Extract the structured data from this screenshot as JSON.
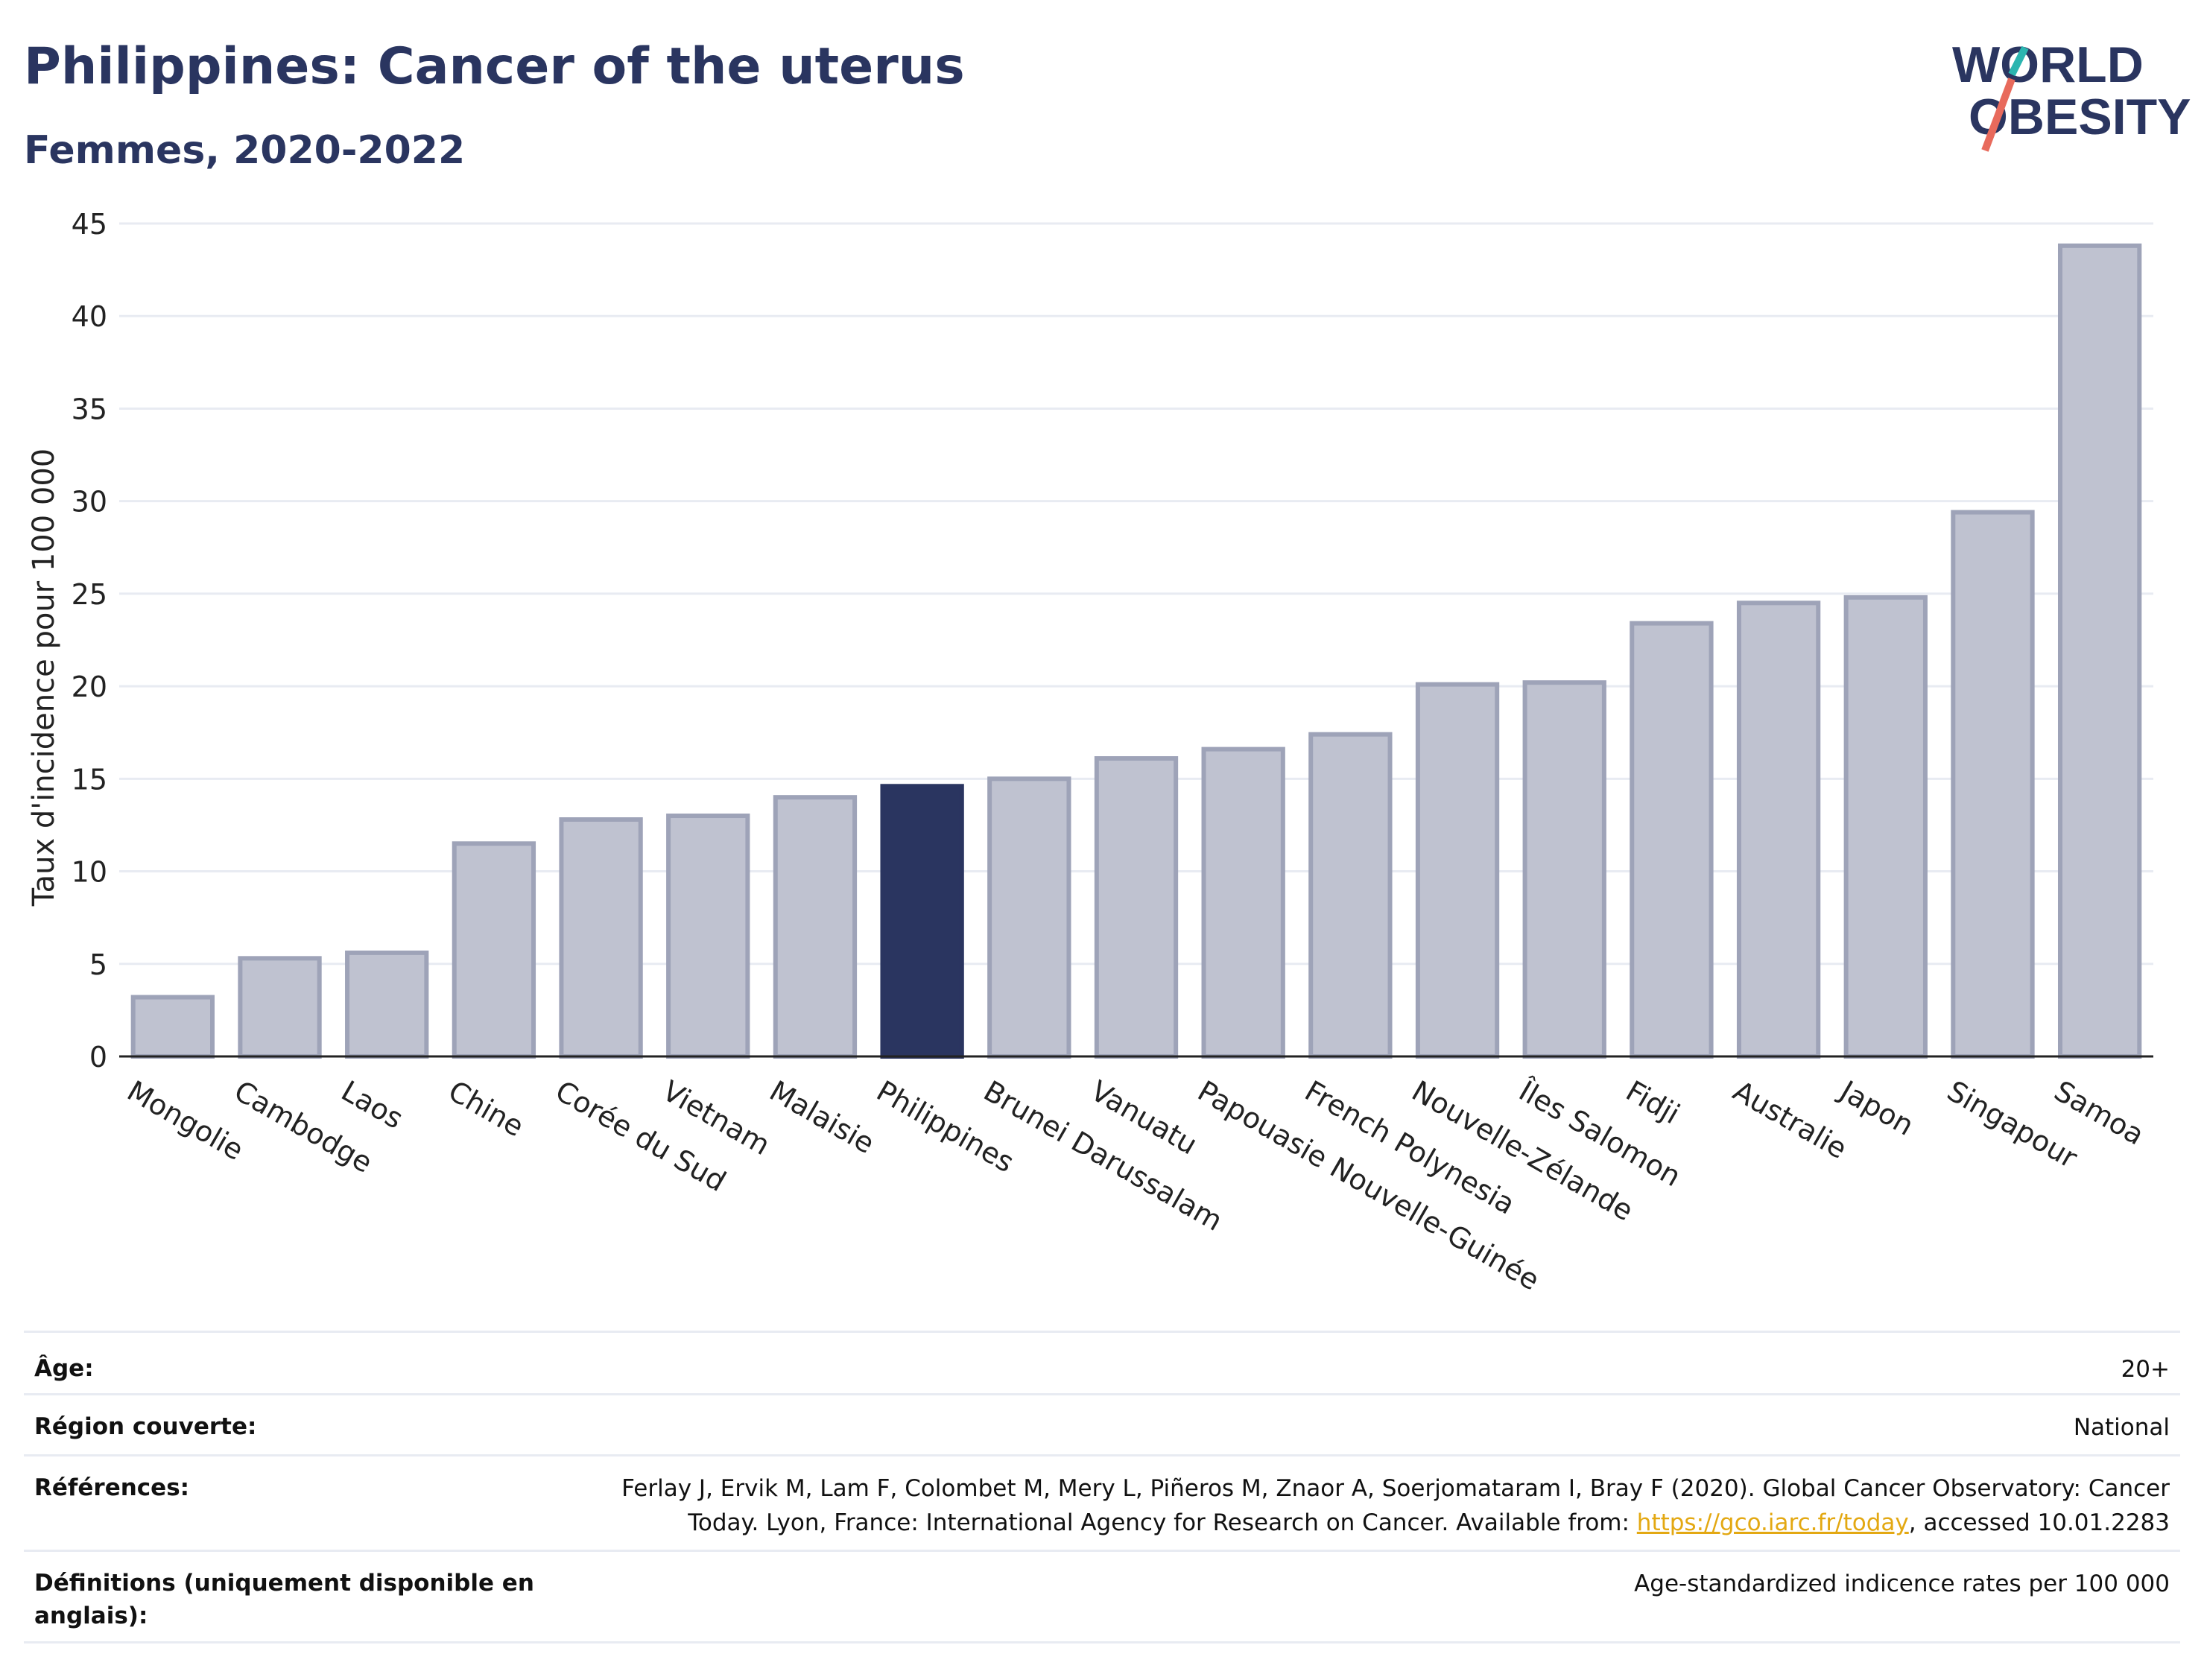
{
  "header": {
    "title": "Philippines: Cancer of the uterus",
    "subtitle": "Femmes, 2020-2022"
  },
  "logo": {
    "line1": "WORLD",
    "line2": "OBESITY",
    "accent_teal": "#2bb5b0",
    "accent_coral": "#e86a5c"
  },
  "colors": {
    "bar": "#bfc2d0",
    "bar_border": "#9ea3b8",
    "highlight": "#2a3560",
    "title": "#2a3560",
    "grid": "#e8ebf2"
  },
  "chart_data": {
    "type": "bar",
    "title": "Philippines: Cancer of the uterus",
    "subtitle": "Femmes, 2020-2022",
    "ylabel": "Taux d'incidence pour 100 000",
    "xlabel": "",
    "ylim": [
      0,
      45
    ],
    "yticks": [
      0,
      5,
      10,
      15,
      20,
      25,
      30,
      35,
      40,
      45
    ],
    "grid": true,
    "highlight": "Philippines",
    "categories": [
      "Mongolie",
      "Cambodge",
      "Laos",
      "Chine",
      "Corée du Sud",
      "Vietnam",
      "Malaisie",
      "Philippines",
      "Brunei Darussalam",
      "Vanuatu",
      "Papouasie Nouvelle-Guinée",
      "French Polynesia",
      "Nouvelle-Zélande",
      "Îles Salomon",
      "Fidji",
      "Australie",
      "Japon",
      "Singapour",
      "Samoa"
    ],
    "values": [
      3.2,
      5.3,
      5.6,
      11.5,
      12.8,
      13.0,
      14.0,
      14.6,
      15.0,
      16.1,
      16.6,
      17.4,
      20.1,
      20.2,
      23.4,
      24.5,
      24.8,
      29.4,
      43.8
    ]
  },
  "info": {
    "age_label": "Âge:",
    "age_value": "20+",
    "region_label": "Région couverte:",
    "region_value": "National",
    "ref_label": "Références:",
    "ref_line1": "Ferlay J, Ervik M, Lam F, Colombet M, Mery L, Piñeros M, Znaor A, Soerjomataram I, Bray F (2020). Global Cancer Observatory: Cancer",
    "ref_line2_pre": "Today. Lyon, France: International Agency for Research on Cancer. Available from: ",
    "ref_link": "https://gco.iarc.fr/today",
    "ref_line2_post": ", accessed 10.01.2283",
    "def_label": "Définitions (uniquement disponible en anglais):",
    "def_value": "Age-standardized indicence rates per 100 000"
  }
}
